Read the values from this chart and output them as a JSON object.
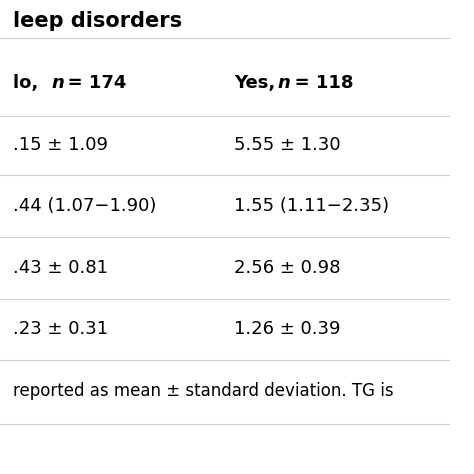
{
  "title_row": "leep disorders",
  "header_col1": "lo,  n = 174",
  "header_col2": "Yes,  n = 118",
  "rows": [
    [
      ".15 ± 1.09",
      "5.55 ± 1.30"
    ],
    [
      ".44 (1.07−1.90)",
      "1.55 (1.11−2.35)"
    ],
    [
      ".43 ± 0.81",
      "2.56 ± 0.98"
    ],
    [
      ".23 ± 0.31",
      "1.26 ± 0.39"
    ]
  ],
  "footer": "reported as mean ± standard deviation. TG is",
  "background_color": "#ffffff",
  "text_color": "#000000",
  "header_bold": true,
  "line_color": "#cccccc",
  "font_size": 13,
  "header_font_size": 13,
  "title_font_size": 15
}
